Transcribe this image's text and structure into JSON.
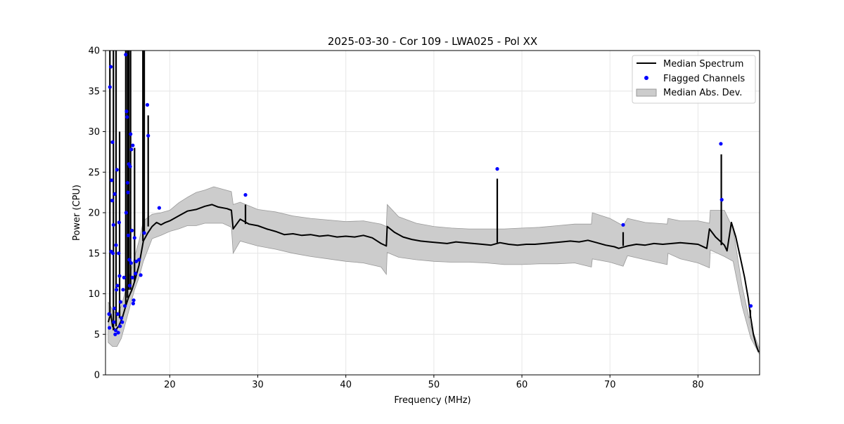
{
  "chart_data": {
    "type": "line",
    "title": "2025-03-30 - Cor 109 - LWA025 - Pol XX",
    "xlabel": "Frequency (MHz)",
    "ylabel": "Power (CPU)",
    "xlim": [
      12.7,
      87.0
    ],
    "ylim": [
      0,
      40
    ],
    "x_ticks": [
      20,
      30,
      40,
      50,
      60,
      70,
      80
    ],
    "y_ticks": [
      0,
      5,
      10,
      15,
      20,
      25,
      30,
      35,
      40
    ],
    "grid": true,
    "legend_position": "top-right",
    "legend": {
      "line": "Median Spectrum",
      "points": "Flagged Channels",
      "band": "Median Abs. Dev."
    },
    "colors": {
      "line": "#000000",
      "points": "#0000ff",
      "band_fill": "#cccccc",
      "band_edge": "#999999",
      "grid": "#e6e6e6"
    },
    "median_spectrum": {
      "x": [
        13.0,
        13.3,
        13.5,
        13.8,
        14.2,
        14.6,
        15.0,
        15.3,
        15.7,
        16.0,
        16.5,
        17.0,
        17.5,
        18.0,
        18.5,
        19.0,
        19.5,
        20.0,
        21.0,
        22.0,
        23.0,
        24.0,
        24.8,
        25.5,
        26.5,
        27.0,
        27.2,
        28.0,
        29.0,
        30.0,
        31.0,
        32.0,
        33.0,
        34.0,
        35.0,
        36.0,
        37.0,
        38.0,
        39.0,
        40.0,
        41.0,
        42.0,
        43.0,
        44.0,
        44.6,
        44.7,
        45.5,
        46.5,
        47.5,
        48.5,
        49.5,
        50.5,
        51.5,
        52.5,
        53.5,
        54.5,
        55.5,
        56.5,
        57.5,
        58.5,
        59.5,
        60.5,
        61.5,
        62.5,
        63.5,
        64.5,
        65.5,
        66.5,
        67.5,
        68.5,
        69.5,
        70.5,
        71.0,
        72.0,
        73.0,
        74.0,
        75.0,
        76.0,
        77.0,
        78.0,
        79.0,
        80.0,
        81.0,
        81.3,
        82.0,
        82.5,
        83.0,
        83.3,
        83.8,
        84.3,
        84.8,
        85.3,
        85.7,
        86.0,
        86.3,
        86.6,
        86.9
      ],
      "y": [
        6.5,
        7.5,
        6.0,
        5.5,
        6.0,
        7.0,
        8.5,
        9.5,
        10.5,
        11.5,
        13.5,
        16.5,
        17.5,
        18.3,
        18.8,
        18.5,
        18.8,
        19.0,
        19.6,
        20.2,
        20.4,
        20.8,
        21.0,
        20.7,
        20.5,
        20.3,
        18.0,
        19.2,
        18.6,
        18.4,
        18.0,
        17.7,
        17.3,
        17.4,
        17.2,
        17.3,
        17.1,
        17.2,
        17.0,
        17.1,
        17.0,
        17.2,
        16.9,
        16.2,
        15.9,
        18.3,
        17.6,
        17.0,
        16.7,
        16.5,
        16.4,
        16.3,
        16.2,
        16.4,
        16.3,
        16.2,
        16.1,
        16.0,
        16.3,
        16.1,
        16.0,
        16.1,
        16.1,
        16.2,
        16.3,
        16.4,
        16.5,
        16.4,
        16.6,
        16.3,
        16.0,
        15.8,
        15.6,
        15.9,
        16.1,
        16.0,
        16.2,
        16.1,
        16.2,
        16.3,
        16.2,
        16.1,
        15.6,
        18.0,
        17.0,
        16.5,
        16.0,
        15.3,
        18.8,
        17.0,
        14.5,
        12.0,
        9.5,
        7.0,
        5.0,
        3.7,
        2.8
      ]
    },
    "mad_band": {
      "x": [
        13.0,
        13.5,
        14.0,
        14.5,
        15.0,
        15.5,
        16.0,
        16.5,
        17.0,
        18.0,
        19.0,
        20.0,
        21.0,
        22.0,
        23.0,
        24.0,
        25.0,
        26.0,
        27.0,
        27.2,
        28.0,
        30.0,
        32.0,
        34.0,
        36.0,
        38.0,
        40.0,
        42.0,
        44.0,
        44.6,
        44.7,
        46.0,
        48.0,
        50.0,
        52.0,
        54.0,
        56.0,
        58.0,
        60.0,
        62.0,
        64.0,
        66.0,
        67.9,
        68.0,
        70.0,
        71.5,
        72.0,
        74.0,
        76.5,
        76.6,
        78.0,
        80.0,
        81.3,
        81.4,
        83.0,
        84.0,
        85.0,
        86.0,
        87.0
      ],
      "upper": [
        9.0,
        8.0,
        7.5,
        8.5,
        10.5,
        12.5,
        14.5,
        16.5,
        19.0,
        19.8,
        20.0,
        20.3,
        21.2,
        21.9,
        22.5,
        22.8,
        23.2,
        22.9,
        22.6,
        21.0,
        21.3,
        20.4,
        20.1,
        19.6,
        19.3,
        19.1,
        18.9,
        19.0,
        18.6,
        18.3,
        21.0,
        19.5,
        18.7,
        18.3,
        18.1,
        18.0,
        18.0,
        18.0,
        18.1,
        18.2,
        18.4,
        18.6,
        18.6,
        20.0,
        19.3,
        18.4,
        19.3,
        18.8,
        18.6,
        19.3,
        19.0,
        19.0,
        18.7,
        20.3,
        20.3,
        18.0,
        11.0,
        6.0,
        3.2
      ],
      "lower": [
        4.0,
        3.5,
        3.5,
        4.5,
        6.5,
        8.5,
        10.5,
        12.0,
        14.0,
        16.8,
        17.2,
        17.7,
        18.0,
        18.4,
        18.4,
        18.7,
        18.7,
        18.7,
        18.2,
        15.0,
        16.5,
        15.9,
        15.5,
        15.0,
        14.6,
        14.3,
        14.0,
        13.8,
        13.3,
        12.4,
        15.1,
        14.5,
        14.2,
        14.0,
        13.9,
        13.9,
        13.8,
        13.6,
        13.6,
        13.7,
        13.7,
        13.8,
        13.3,
        14.3,
        13.9,
        13.4,
        14.7,
        14.2,
        13.6,
        15.0,
        14.3,
        13.8,
        13.2,
        15.4,
        14.6,
        14.0,
        8.5,
        4.5,
        2.5
      ]
    },
    "spikes": [
      {
        "x": 13.2,
        "y": 40.0
      },
      {
        "x": 13.6,
        "y": 40.0
      },
      {
        "x": 13.9,
        "y": 40.0
      },
      {
        "x": 14.3,
        "y": 30.0
      },
      {
        "x": 15.0,
        "y": 40.0
      },
      {
        "x": 15.2,
        "y": 40.0
      },
      {
        "x": 15.35,
        "y": 40.0
      },
      {
        "x": 15.55,
        "y": 40.0
      },
      {
        "x": 16.0,
        "y": 28.0
      },
      {
        "x": 16.95,
        "y": 40.0
      },
      {
        "x": 17.05,
        "y": 40.0
      },
      {
        "x": 17.1,
        "y": 40.0
      },
      {
        "x": 17.55,
        "y": 32.0
      },
      {
        "x": 28.6,
        "y": 21.0
      },
      {
        "x": 57.2,
        "y": 24.2
      },
      {
        "x": 71.5,
        "y": 17.6
      },
      {
        "x": 82.65,
        "y": 27.2
      },
      {
        "x": 85.95,
        "y": 8.0
      }
    ],
    "flagged_channels": {
      "x": [
        13.1,
        13.15,
        13.2,
        13.3,
        13.35,
        13.4,
        13.45,
        13.5,
        13.55,
        13.6,
        13.65,
        13.7,
        13.75,
        13.8,
        13.85,
        13.9,
        13.95,
        14.0,
        14.05,
        14.1,
        14.15,
        14.2,
        14.25,
        14.3,
        14.35,
        14.4,
        14.5,
        14.6,
        14.7,
        14.8,
        14.9,
        15.0,
        15.05,
        15.1,
        15.15,
        15.2,
        15.25,
        15.3,
        15.35,
        15.4,
        15.45,
        15.5,
        15.55,
        15.6,
        15.65,
        15.7,
        15.75,
        15.8,
        15.85,
        15.9,
        16.0,
        16.1,
        16.2,
        16.5,
        16.7,
        17.1,
        17.45,
        17.55,
        18.8,
        28.6,
        57.2,
        71.5,
        82.6,
        82.7,
        86.0
      ],
      "y": [
        7.5,
        5.8,
        35.5,
        38.0,
        15.2,
        24.0,
        21.5,
        28.7,
        15.0,
        18.5,
        6.5,
        8.2,
        22.3,
        5.0,
        5.5,
        16.0,
        10.5,
        25.3,
        11.0,
        7.5,
        5.2,
        15.0,
        18.8,
        12.2,
        6.0,
        9.0,
        7.0,
        6.5,
        10.5,
        12.0,
        8.5,
        39.5,
        20.0,
        32.5,
        31.8,
        23.7,
        22.5,
        17.2,
        26.0,
        14.2,
        11.0,
        25.7,
        29.7,
        13.8,
        27.8,
        17.8,
        12.0,
        28.3,
        8.8,
        9.2,
        16.9,
        12.5,
        14.0,
        14.2,
        12.3,
        17.5,
        33.3,
        29.5,
        20.6,
        22.2,
        25.4,
        18.5,
        28.5,
        21.6,
        8.5
      ]
    }
  }
}
